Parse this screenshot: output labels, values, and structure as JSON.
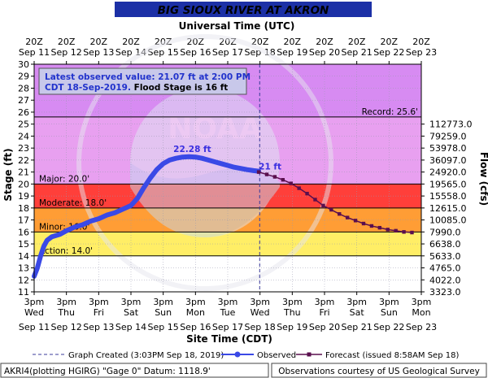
{
  "header": {
    "title": "BIG SIOUX RIVER AT AKRON"
  },
  "top_axis": {
    "title": "Universal Time (UTC)",
    "hour_labels": [
      "20Z",
      "20Z",
      "20Z",
      "20Z",
      "20Z",
      "20Z",
      "20Z",
      "20Z",
      "20Z",
      "20Z",
      "20Z",
      "20Z",
      "20Z"
    ],
    "date_labels": [
      "Sep 11",
      "Sep 12",
      "Sep 13",
      "Sep 14",
      "Sep 15",
      "Sep 16",
      "Sep 17",
      "Sep 18",
      "Sep 19",
      "Sep 20",
      "Sep 21",
      "Sep 22",
      "Sep 23"
    ]
  },
  "bottom_axis": {
    "title": "Site Time (CDT)",
    "time_labels": [
      "3pm",
      "3pm",
      "3pm",
      "3pm",
      "3pm",
      "3pm",
      "3pm",
      "3pm",
      "3pm",
      "3pm",
      "3pm",
      "3pm",
      "3pm"
    ],
    "day_labels": [
      "Wed",
      "Thu",
      "Fri",
      "Sat",
      "Sun",
      "Mon",
      "Tue",
      "Wed",
      "Thu",
      "Fri",
      "Sat",
      "Sun",
      "Mon"
    ],
    "date_labels": [
      "Sep 11",
      "Sep 12",
      "Sep 13",
      "Sep 14",
      "Sep 15",
      "Sep 16",
      "Sep 17",
      "Sep 18",
      "Sep 19",
      "Sep 20",
      "Sep 21",
      "Sep 22",
      "Sep 23"
    ]
  },
  "info_box": {
    "line1": "Latest observed value: 21.07 ft at 2:00 PM",
    "line2_blue": "CDT 18-Sep-2019.",
    "line2_black": " Flood Stage is 16 ft"
  },
  "legend": {
    "created": "Graph Created (3:03PM Sep 18, 2019)",
    "observed": "Observed",
    "forecast": "Forecast (issued 8:58AM Sep 18)"
  },
  "footer": {
    "left": "AKRI4(plotting HGIRG) \"Gage 0\" Datum: 1118.9'",
    "right": "Observations courtesy of US Geological Survey"
  },
  "watermark": "NOAA",
  "colors": {
    "observed": "#3a49e6",
    "forecast": "#5a0f4e",
    "record_band": "#d78bf2",
    "major_band": "#e8a0f0",
    "moderate_band": "#ff3f3a",
    "minor_band": "#ff9d35",
    "action_band": "#ffee66"
  },
  "chart_data": {
    "type": "line",
    "ylabel": "Stage (ft)",
    "y2label": "Flow (cfs)",
    "ylim": [
      11,
      30
    ],
    "yticks": [
      11,
      12,
      13,
      14,
      15,
      16,
      17,
      18,
      19,
      20,
      21,
      22,
      23,
      24,
      25,
      26,
      27,
      28,
      29,
      30
    ],
    "x_start": "Sep 11 3pm CDT",
    "x_end": "Sep 23 3pm CDT",
    "flow_ticks": [
      {
        "stage": 25,
        "label": "112773.0"
      },
      {
        "stage": 24,
        "label": "79259.0"
      },
      {
        "stage": 23,
        "label": "53978.0"
      },
      {
        "stage": 22,
        "label": "36097.0"
      },
      {
        "stage": 21,
        "label": "24920.0"
      },
      {
        "stage": 20,
        "label": "19565.0"
      },
      {
        "stage": 19,
        "label": "15558.0"
      },
      {
        "stage": 18,
        "label": "12615.0"
      },
      {
        "stage": 17,
        "label": "10085.0"
      },
      {
        "stage": 16,
        "label": "7990.0"
      },
      {
        "stage": 15,
        "label": "6638.0"
      },
      {
        "stage": 14,
        "label": "5633.0"
      },
      {
        "stage": 13,
        "label": "4765.0"
      },
      {
        "stage": 12,
        "label": "4022.0"
      },
      {
        "stage": 11,
        "label": "3323.0"
      }
    ],
    "thresholds": [
      {
        "name": "Record",
        "text": "Record: 25.6'",
        "value": 25.6
      },
      {
        "name": "Major",
        "text": "Major: 20.0'",
        "value": 20.0
      },
      {
        "name": "Moderate",
        "text": "Moderate: 18.0'",
        "value": 18.0
      },
      {
        "name": "Minor",
        "text": "Minor: 16.0'",
        "value": 16.0
      },
      {
        "name": "Action",
        "text": "Action: 14.0'",
        "value": 14.0
      }
    ],
    "graph_created_day": 6.99,
    "series": [
      {
        "name": "Observed",
        "units": "days since Sep 11 3pm CDT",
        "points": [
          [
            0.0,
            12.3
          ],
          [
            0.1,
            13.0
          ],
          [
            0.2,
            14.0
          ],
          [
            0.3,
            14.8
          ],
          [
            0.4,
            15.3
          ],
          [
            0.55,
            15.6
          ],
          [
            0.8,
            15.8
          ],
          [
            1.0,
            16.1
          ],
          [
            1.25,
            16.4
          ],
          [
            1.5,
            16.6
          ],
          [
            1.75,
            16.9
          ],
          [
            2.0,
            17.1
          ],
          [
            2.25,
            17.4
          ],
          [
            2.5,
            17.6
          ],
          [
            2.75,
            17.9
          ],
          [
            3.0,
            18.2
          ],
          [
            3.2,
            18.8
          ],
          [
            3.4,
            19.7
          ],
          [
            3.6,
            20.5
          ],
          [
            3.8,
            21.2
          ],
          [
            4.0,
            21.7
          ],
          [
            4.2,
            22.0
          ],
          [
            4.4,
            22.15
          ],
          [
            4.6,
            22.25
          ],
          [
            4.8,
            22.28
          ],
          [
            5.0,
            22.25
          ],
          [
            5.2,
            22.15
          ],
          [
            5.4,
            22.0
          ],
          [
            5.6,
            21.85
          ],
          [
            5.8,
            21.7
          ],
          [
            6.0,
            21.55
          ],
          [
            6.2,
            21.4
          ],
          [
            6.4,
            21.3
          ],
          [
            6.6,
            21.2
          ],
          [
            6.8,
            21.12
          ],
          [
            6.96,
            21.07
          ]
        ]
      },
      {
        "name": "Forecast",
        "units": "days since Sep 11 3pm CDT",
        "points": [
          [
            6.96,
            21.0
          ],
          [
            7.21,
            20.8
          ],
          [
            7.46,
            20.6
          ],
          [
            7.71,
            20.35
          ],
          [
            7.96,
            20.05
          ],
          [
            8.21,
            19.65
          ],
          [
            8.46,
            19.2
          ],
          [
            8.71,
            18.7
          ],
          [
            8.96,
            18.2
          ],
          [
            9.21,
            17.85
          ],
          [
            9.46,
            17.5
          ],
          [
            9.71,
            17.2
          ],
          [
            9.96,
            16.95
          ],
          [
            10.21,
            16.7
          ],
          [
            10.46,
            16.5
          ],
          [
            10.71,
            16.35
          ],
          [
            10.96,
            16.2
          ],
          [
            11.21,
            16.1
          ],
          [
            11.46,
            16.0
          ],
          [
            11.71,
            15.95
          ]
        ]
      }
    ],
    "annotations": [
      {
        "text": "22.28 ft",
        "x": 4.8,
        "y": 22.28
      },
      {
        "text": "21 ft",
        "x": 6.96,
        "y": 21.0
      }
    ]
  }
}
